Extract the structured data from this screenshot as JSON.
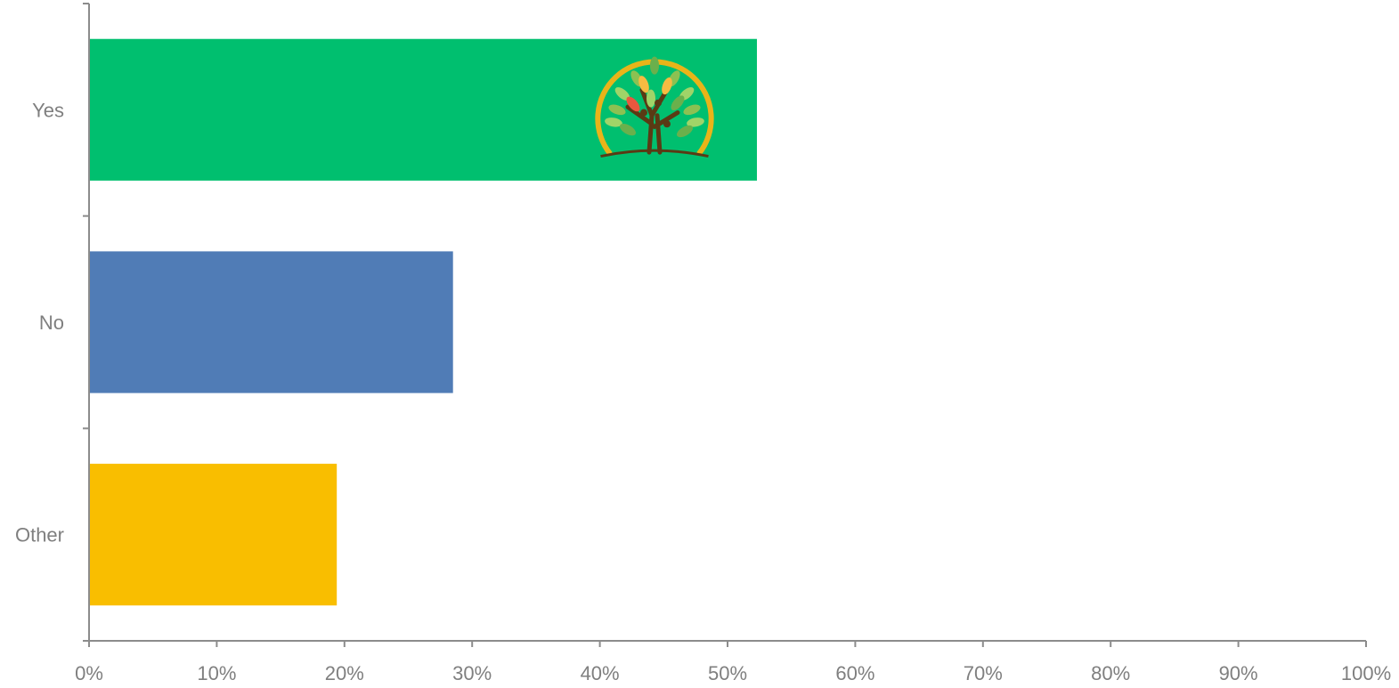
{
  "chart_data": {
    "type": "bar",
    "orientation": "horizontal",
    "categories": [
      "Yes",
      "No",
      "Other"
    ],
    "values": [
      52.3,
      28.5,
      19.4
    ],
    "value_unit": "%",
    "xlim": [
      0,
      100
    ],
    "x_ticks": [
      "0%",
      "10%",
      "20%",
      "30%",
      "40%",
      "50%",
      "60%",
      "70%",
      "80%",
      "90%",
      "100%"
    ],
    "title": "",
    "xlabel": "",
    "ylabel": "",
    "grid": false,
    "legend": "none",
    "bar_colors": [
      "#00BF6F",
      "#507CB6",
      "#F9BE00"
    ],
    "bar_decoration": {
      "category": "Yes",
      "icon": "tree-logo-icon"
    }
  }
}
